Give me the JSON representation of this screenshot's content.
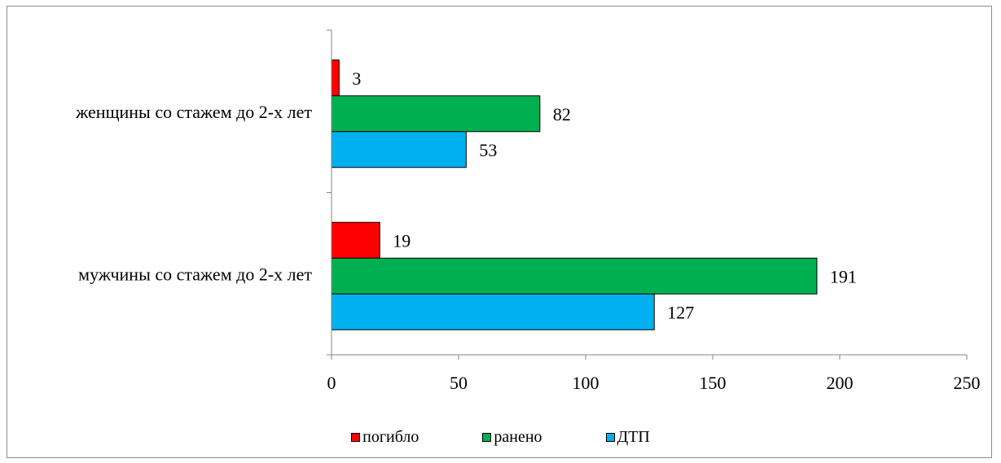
{
  "chart_data": {
    "type": "bar",
    "orientation": "horizontal",
    "categories": [
      "женщины со стажем до 2-х лет",
      "мужчины со стажем до 2-х лет"
    ],
    "series": [
      {
        "name": "погибло",
        "color": "#ff0000",
        "values": [
          3,
          19
        ]
      },
      {
        "name": "ранено",
        "color": "#00b050",
        "values": [
          82,
          191
        ]
      },
      {
        "name": "ДТП",
        "color": "#00b0f0",
        "values": [
          53,
          127
        ]
      }
    ],
    "xlim": [
      0,
      250
    ],
    "xticks": [
      0,
      50,
      100,
      150,
      200,
      250
    ],
    "legend_position": "bottom",
    "grid": false
  }
}
